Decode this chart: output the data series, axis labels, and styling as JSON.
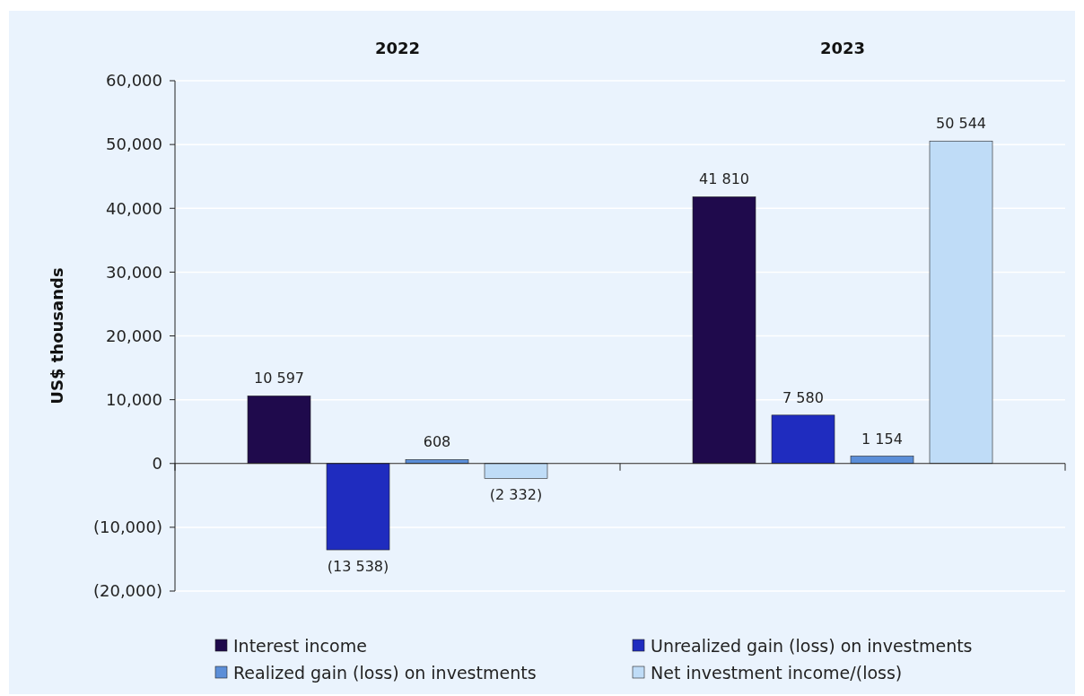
{
  "chart_data": {
    "type": "bar",
    "ylabel": "US$ thousands",
    "categories": [
      "2022",
      "2023"
    ],
    "series": [
      {
        "name": "Interest income",
        "color": "#1f0a4c",
        "values": [
          10597,
          41810
        ],
        "value_labels": [
          "10 597",
          "41 810"
        ]
      },
      {
        "name": "Unrealized gain (loss) on investments",
        "color": "#1f2cbf",
        "values": [
          -13538,
          7580
        ],
        "value_labels": [
          "(13 538)",
          "7 580"
        ]
      },
      {
        "name": "Realized gain (loss) on investments",
        "color": "#5b8ed8",
        "values": [
          608,
          1154
        ],
        "value_labels": [
          "608",
          "1 154"
        ]
      },
      {
        "name": "Net investment income/(loss)",
        "color": "#bfdcf7",
        "values": [
          -2332,
          50544
        ],
        "value_labels": [
          "(2 332)",
          "50 544"
        ]
      }
    ],
    "ylim": [
      -20000,
      60000
    ],
    "yticks": [
      {
        "value": -20000,
        "label": "(20,000)"
      },
      {
        "value": -10000,
        "label": "(10,000)"
      },
      {
        "value": 0,
        "label": "0"
      },
      {
        "value": 10000,
        "label": "10,000"
      },
      {
        "value": 20000,
        "label": "20,000"
      },
      {
        "value": 30000,
        "label": "30,000"
      },
      {
        "value": 40000,
        "label": "40,000"
      },
      {
        "value": 50000,
        "label": "50,000"
      },
      {
        "value": 60000,
        "label": "60,000"
      }
    ],
    "grid": "y",
    "legend": "bottom"
  }
}
